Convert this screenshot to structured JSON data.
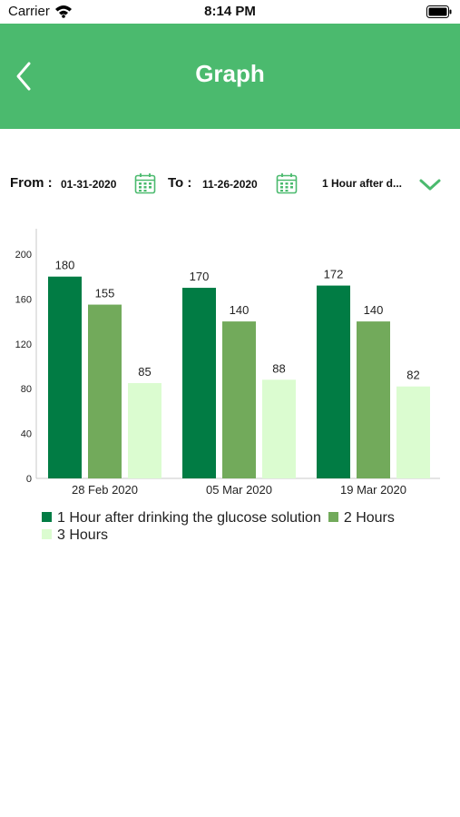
{
  "status_bar": {
    "carrier": "Carrier",
    "time": "8:14 PM",
    "icons": [
      "wifi-icon",
      "battery-icon"
    ]
  },
  "nav": {
    "title": "Graph",
    "back_icon": "chevron-left-icon",
    "color": "#4bba6e"
  },
  "filters": {
    "from_label": "From :",
    "from_value": "01-31-2020",
    "to_label": "To :",
    "to_value": "11-26-2020",
    "calendar_icon": "calendar-icon",
    "dropdown_value": "1 Hour after d...",
    "dropdown_icon": "chevron-down-icon"
  },
  "chart_data": {
    "type": "bar",
    "categories": [
      "28 Feb 2020",
      "05 Mar 2020",
      "19 Mar 2020"
    ],
    "series": [
      {
        "name": "1 Hour after drinking the glucose solution",
        "values": [
          180,
          170,
          172
        ],
        "color": "#017c44"
      },
      {
        "name": "2 Hours",
        "values": [
          155,
          140,
          140
        ],
        "color": "#72aa5b"
      },
      {
        "name": "3 Hours",
        "values": [
          85,
          88,
          82
        ],
        "color": "#dbfcd0"
      }
    ],
    "yticks": [
      0,
      40,
      80,
      120,
      160,
      200
    ],
    "ylim": [
      0,
      200
    ],
    "grid": false,
    "legend": "bottom",
    "data_labels": true
  }
}
